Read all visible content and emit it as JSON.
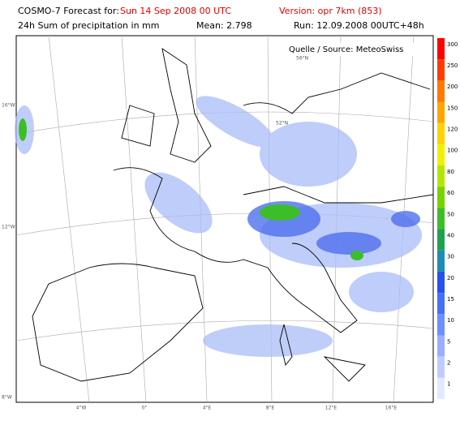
{
  "header": {
    "forecast_label": "COSMO-7 Forecast for:",
    "forecast_date": "Sun 14 Sep 2008 00 UTC",
    "version": "Version: opr 7km (853)",
    "variable": "24h Sum of precipitation in mm",
    "mean": "Mean: 2.798",
    "run": "Run: 12.09.2008 00UTC+48h"
  },
  "map": {
    "source": "Quelle / Source: MeteoSwiss",
    "left_labels": [
      "16°W",
      "12°W",
      "8°W"
    ],
    "bottom_labels": [
      "4°W",
      "0°",
      "4°E",
      "8°E",
      "12°E",
      "16°E"
    ],
    "inner_labels": [
      "56°N",
      "52°N"
    ]
  },
  "legend": {
    "levels": [
      {
        "value": 300,
        "color": "#ff0000"
      },
      {
        "value": 250,
        "color": "#ff3c00"
      },
      {
        "value": 200,
        "color": "#ff7800"
      },
      {
        "value": 150,
        "color": "#ffa500"
      },
      {
        "value": 120,
        "color": "#ffd200"
      },
      {
        "value": 100,
        "color": "#f0f000"
      },
      {
        "value": 80,
        "color": "#b4e600"
      },
      {
        "value": 60,
        "color": "#78d200"
      },
      {
        "value": 50,
        "color": "#3cbe28"
      },
      {
        "value": 40,
        "color": "#1ea050"
      },
      {
        "value": 30,
        "color": "#1e8cb4"
      },
      {
        "value": 20,
        "color": "#2850f0"
      },
      {
        "value": 15,
        "color": "#4670f5"
      },
      {
        "value": 10,
        "color": "#6e90fa"
      },
      {
        "value": 5,
        "color": "#9aaeff"
      },
      {
        "value": 2,
        "color": "#c0ccff"
      },
      {
        "value": 1,
        "color": "#e2e8ff"
      }
    ]
  }
}
